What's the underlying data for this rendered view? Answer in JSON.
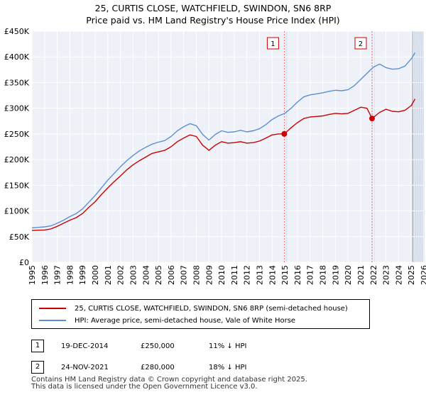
{
  "chart_data": {
    "type": "line",
    "title": "25, CURTIS CLOSE, WATCHFIELD, SWINDON, SN6 8RP",
    "subtitle": "Price paid vs. HM Land Registry's House Price Index (HPI)",
    "xlabel": "",
    "ylabel": "",
    "xlim": [
      1995,
      2026
    ],
    "ylim": [
      0,
      450000
    ],
    "x_ticks": [
      1995,
      1996,
      1997,
      1998,
      1999,
      2000,
      2001,
      2002,
      2003,
      2004,
      2005,
      2006,
      2007,
      2008,
      2009,
      2010,
      2011,
      2012,
      2013,
      2014,
      2015,
      2016,
      2017,
      2018,
      2019,
      2020,
      2021,
      2022,
      2023,
      2024,
      2025,
      2026
    ],
    "y_ticks": [
      {
        "value": 0,
        "label": "£0"
      },
      {
        "value": 50000,
        "label": "£50K"
      },
      {
        "value": 100000,
        "label": "£100K"
      },
      {
        "value": 150000,
        "label": "£150K"
      },
      {
        "value": 200000,
        "label": "£200K"
      },
      {
        "value": 250000,
        "label": "£250K"
      },
      {
        "value": 300000,
        "label": "£300K"
      },
      {
        "value": 350000,
        "label": "£350K"
      },
      {
        "value": 400000,
        "label": "£400K"
      },
      {
        "value": 450000,
        "label": "£450K"
      }
    ],
    "grid": true,
    "series": [
      {
        "name": "25, CURTIS CLOSE, WATCHFIELD, SWINDON, SN6 8RP (semi-detached house)",
        "color": "#cc0000",
        "x": [
          1995.0,
          1995.5,
          1996.0,
          1996.5,
          1997.0,
          1997.5,
          1998.0,
          1998.5,
          1999.0,
          1999.5,
          2000.0,
          2000.5,
          2001.0,
          2001.5,
          2002.0,
          2002.5,
          2003.0,
          2003.5,
          2004.0,
          2004.5,
          2005.0,
          2005.5,
          2006.0,
          2006.5,
          2007.0,
          2007.5,
          2008.0,
          2008.5,
          2009.0,
          2009.5,
          2010.0,
          2010.5,
          2011.0,
          2011.5,
          2012.0,
          2012.5,
          2013.0,
          2013.5,
          2014.0,
          2014.5,
          2014.96,
          2015.5,
          2016.0,
          2016.5,
          2017.0,
          2017.5,
          2018.0,
          2018.5,
          2019.0,
          2019.5,
          2020.0,
          2020.5,
          2021.0,
          2021.5,
          2021.9,
          2022.5,
          2023.0,
          2023.5,
          2024.0,
          2024.5,
          2025.0,
          2025.3
        ],
        "values": [
          62000,
          62500,
          63000,
          65000,
          70000,
          76000,
          82000,
          87000,
          95000,
          107000,
          118000,
          132000,
          145000,
          157000,
          168000,
          180000,
          190000,
          198000,
          205000,
          212000,
          215000,
          218000,
          225000,
          235000,
          242000,
          248000,
          245000,
          228000,
          218000,
          228000,
          235000,
          232000,
          233000,
          235000,
          232000,
          233000,
          236000,
          242000,
          248000,
          250000,
          250000,
          262000,
          272000,
          280000,
          283000,
          284000,
          285000,
          288000,
          290000,
          289000,
          290000,
          296000,
          302000,
          300000,
          280000,
          292000,
          298000,
          294000,
          293000,
          296000,
          305000,
          318000
        ]
      },
      {
        "name": "HPI: Average price, semi-detached house, Vale of White Horse",
        "color": "#5b8fd4",
        "x": [
          1995.0,
          1995.5,
          1996.0,
          1996.5,
          1997.0,
          1997.5,
          1998.0,
          1998.5,
          1999.0,
          1999.5,
          2000.0,
          2000.5,
          2001.0,
          2001.5,
          2002.0,
          2002.5,
          2003.0,
          2003.5,
          2004.0,
          2004.5,
          2005.0,
          2005.5,
          2006.0,
          2006.5,
          2007.0,
          2007.5,
          2008.0,
          2008.5,
          2009.0,
          2009.5,
          2010.0,
          2010.5,
          2011.0,
          2011.5,
          2012.0,
          2012.5,
          2013.0,
          2013.5,
          2014.0,
          2014.5,
          2015.0,
          2015.5,
          2016.0,
          2016.5,
          2017.0,
          2017.5,
          2018.0,
          2018.5,
          2019.0,
          2019.5,
          2020.0,
          2020.5,
          2021.0,
          2021.5,
          2022.0,
          2022.5,
          2023.0,
          2023.5,
          2024.0,
          2024.5,
          2025.0,
          2025.3
        ],
        "values": [
          67000,
          68000,
          69000,
          71000,
          76000,
          82000,
          89000,
          95000,
          104000,
          117000,
          130000,
          145000,
          160000,
          173000,
          186000,
          198000,
          208000,
          217000,
          224000,
          230000,
          234000,
          237000,
          245000,
          256000,
          264000,
          270000,
          266000,
          249000,
          238000,
          249000,
          256000,
          253000,
          254000,
          257000,
          254000,
          256000,
          260000,
          268000,
          278000,
          285000,
          290000,
          300000,
          312000,
          322000,
          326000,
          328000,
          330000,
          333000,
          335000,
          334000,
          336000,
          344000,
          356000,
          368000,
          380000,
          386000,
          379000,
          376000,
          377000,
          382000,
          396000,
          408000
        ]
      }
    ],
    "annotations": [
      {
        "label": "1",
        "x": 2014.96,
        "value": 250000,
        "date": "19-DEC-2014",
        "price": "£250,000",
        "hpi_diff": "11% ↓ HPI"
      },
      {
        "label": "2",
        "x": 2021.9,
        "value": 280000,
        "date": "24-NOV-2021",
        "price": "£280,000",
        "hpi_diff": "18% ↓ HPI"
      }
    ],
    "forecast_from": 2025.1
  },
  "footer": {
    "line1": "Contains HM Land Registry data © Crown copyright and database right 2025.",
    "line2": "This data is licensed under the Open Government Licence v3.0."
  },
  "colors": {
    "price_line": "#cc0000",
    "hpi_line": "#5b8fd4",
    "plot_bg": "#eef1f8",
    "shade": "#dde5f2",
    "vline": "#ee6666"
  }
}
